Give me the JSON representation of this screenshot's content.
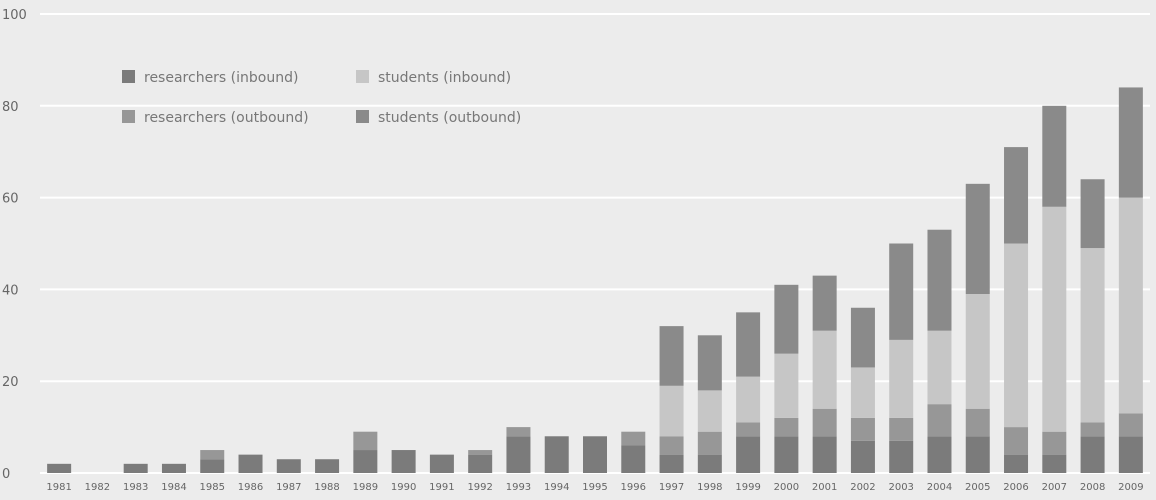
{
  "chart_data": {
    "type": "bar",
    "stacked": true,
    "title": "",
    "xlabel": "",
    "ylabel": "",
    "ylim": [
      0,
      100
    ],
    "yticks": [
      0,
      20,
      40,
      60,
      80,
      100
    ],
    "grid": true,
    "legend_position": "top-left",
    "categories": [
      "1981",
      "1982",
      "1983",
      "1984",
      "1985",
      "1986",
      "1987",
      "1988",
      "1989",
      "1990",
      "1991",
      "1992",
      "1993",
      "1994",
      "1995",
      "1996",
      "1997",
      "1998",
      "1999",
      "2000",
      "2001",
      "2002",
      "2003",
      "2004",
      "2005",
      "2006",
      "2007",
      "2008",
      "2009"
    ],
    "series": [
      {
        "name": "researchers (inbound)",
        "color": "#7b7b7b",
        "values": [
          2,
          0,
          2,
          2,
          3,
          4,
          3,
          3,
          5,
          5,
          4,
          4,
          8,
          8,
          8,
          6,
          4,
          4,
          8,
          8,
          8,
          7,
          7,
          8,
          8,
          4,
          4,
          8,
          8
        ]
      },
      {
        "name": "researchers (outbound)",
        "color": "#979797",
        "values": [
          0,
          0,
          0,
          0,
          2,
          0,
          0,
          0,
          4,
          0,
          0,
          1,
          2,
          0,
          0,
          3,
          4,
          5,
          3,
          4,
          6,
          5,
          5,
          7,
          6,
          6,
          5,
          3,
          5
        ]
      },
      {
        "name": "students (inbound)",
        "color": "#c6c6c6",
        "values": [
          0,
          0,
          0,
          0,
          0,
          0,
          0,
          0,
          0,
          0,
          0,
          0,
          0,
          0,
          0,
          0,
          11,
          9,
          10,
          14,
          17,
          11,
          17,
          16,
          25,
          40,
          49,
          38,
          47
        ]
      },
      {
        "name": "students (outbound)",
        "color": "#8a8a8a",
        "values": [
          0,
          0,
          0,
          0,
          0,
          0,
          0,
          0,
          0,
          0,
          0,
          0,
          0,
          0,
          0,
          0,
          13,
          12,
          14,
          15,
          12,
          13,
          21,
          22,
          24,
          21,
          22,
          15,
          24
        ]
      }
    ]
  }
}
